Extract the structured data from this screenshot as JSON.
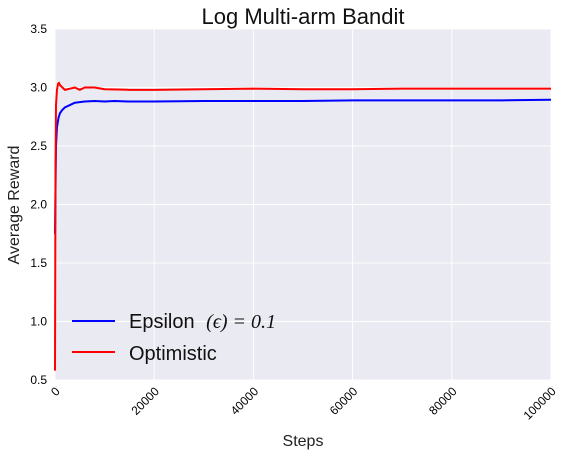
{
  "chart_data": {
    "type": "line",
    "title": "Log Multi-arm Bandit",
    "xlabel": "Steps",
    "ylabel": "Average Reward",
    "xlim": [
      0,
      100000
    ],
    "ylim": [
      0.5,
      3.5
    ],
    "xticks": [
      0,
      20000,
      40000,
      60000,
      80000,
      100000
    ],
    "yticks": [
      0.5,
      1.0,
      1.5,
      2.0,
      2.5,
      3.0,
      3.5
    ],
    "xtick_labels": [
      "0",
      "20000",
      "40000",
      "60000",
      "80000",
      "100000"
    ],
    "ytick_labels": [
      "0.5",
      "1.0",
      "1.5",
      "2.0",
      "2.5",
      "3.0",
      "3.5"
    ],
    "grid": true,
    "legend_position": "lower-left",
    "background": "#eaeaf2",
    "series": [
      {
        "name": "Epsilon (ϵ) = 0.1",
        "legend_prefix": "Epsilon",
        "legend_math": "(ϵ) = 0.1",
        "color": "#0000ff",
        "x": [
          0,
          200,
          400,
          700,
          1000,
          1500,
          2000,
          3000,
          4000,
          6000,
          8000,
          10000,
          12000,
          15000,
          20000,
          30000,
          40000,
          50000,
          60000,
          70000,
          80000,
          90000,
          100000
        ],
        "y": [
          1.75,
          2.5,
          2.66,
          2.74,
          2.78,
          2.81,
          2.83,
          2.85,
          2.87,
          2.88,
          2.885,
          2.88,
          2.885,
          2.88,
          2.88,
          2.885,
          2.885,
          2.885,
          2.89,
          2.89,
          2.89,
          2.89,
          2.895
        ]
      },
      {
        "name": "Optimistic",
        "legend_prefix": "Optimistic",
        "legend_math": "",
        "color": "#ff0000",
        "x": [
          0,
          100,
          200,
          400,
          600,
          800,
          1000,
          1500,
          2000,
          3000,
          4000,
          5000,
          6000,
          8000,
          10000,
          15000,
          20000,
          30000,
          40000,
          50000,
          60000,
          70000,
          80000,
          90000,
          100000
        ],
        "y": [
          0.58,
          2.3,
          2.85,
          2.98,
          3.03,
          3.04,
          3.02,
          3.0,
          2.98,
          2.99,
          3.0,
          2.98,
          3.0,
          3.0,
          2.985,
          2.98,
          2.98,
          2.985,
          2.99,
          2.985,
          2.985,
          2.99,
          2.99,
          2.99,
          2.99
        ]
      }
    ]
  }
}
